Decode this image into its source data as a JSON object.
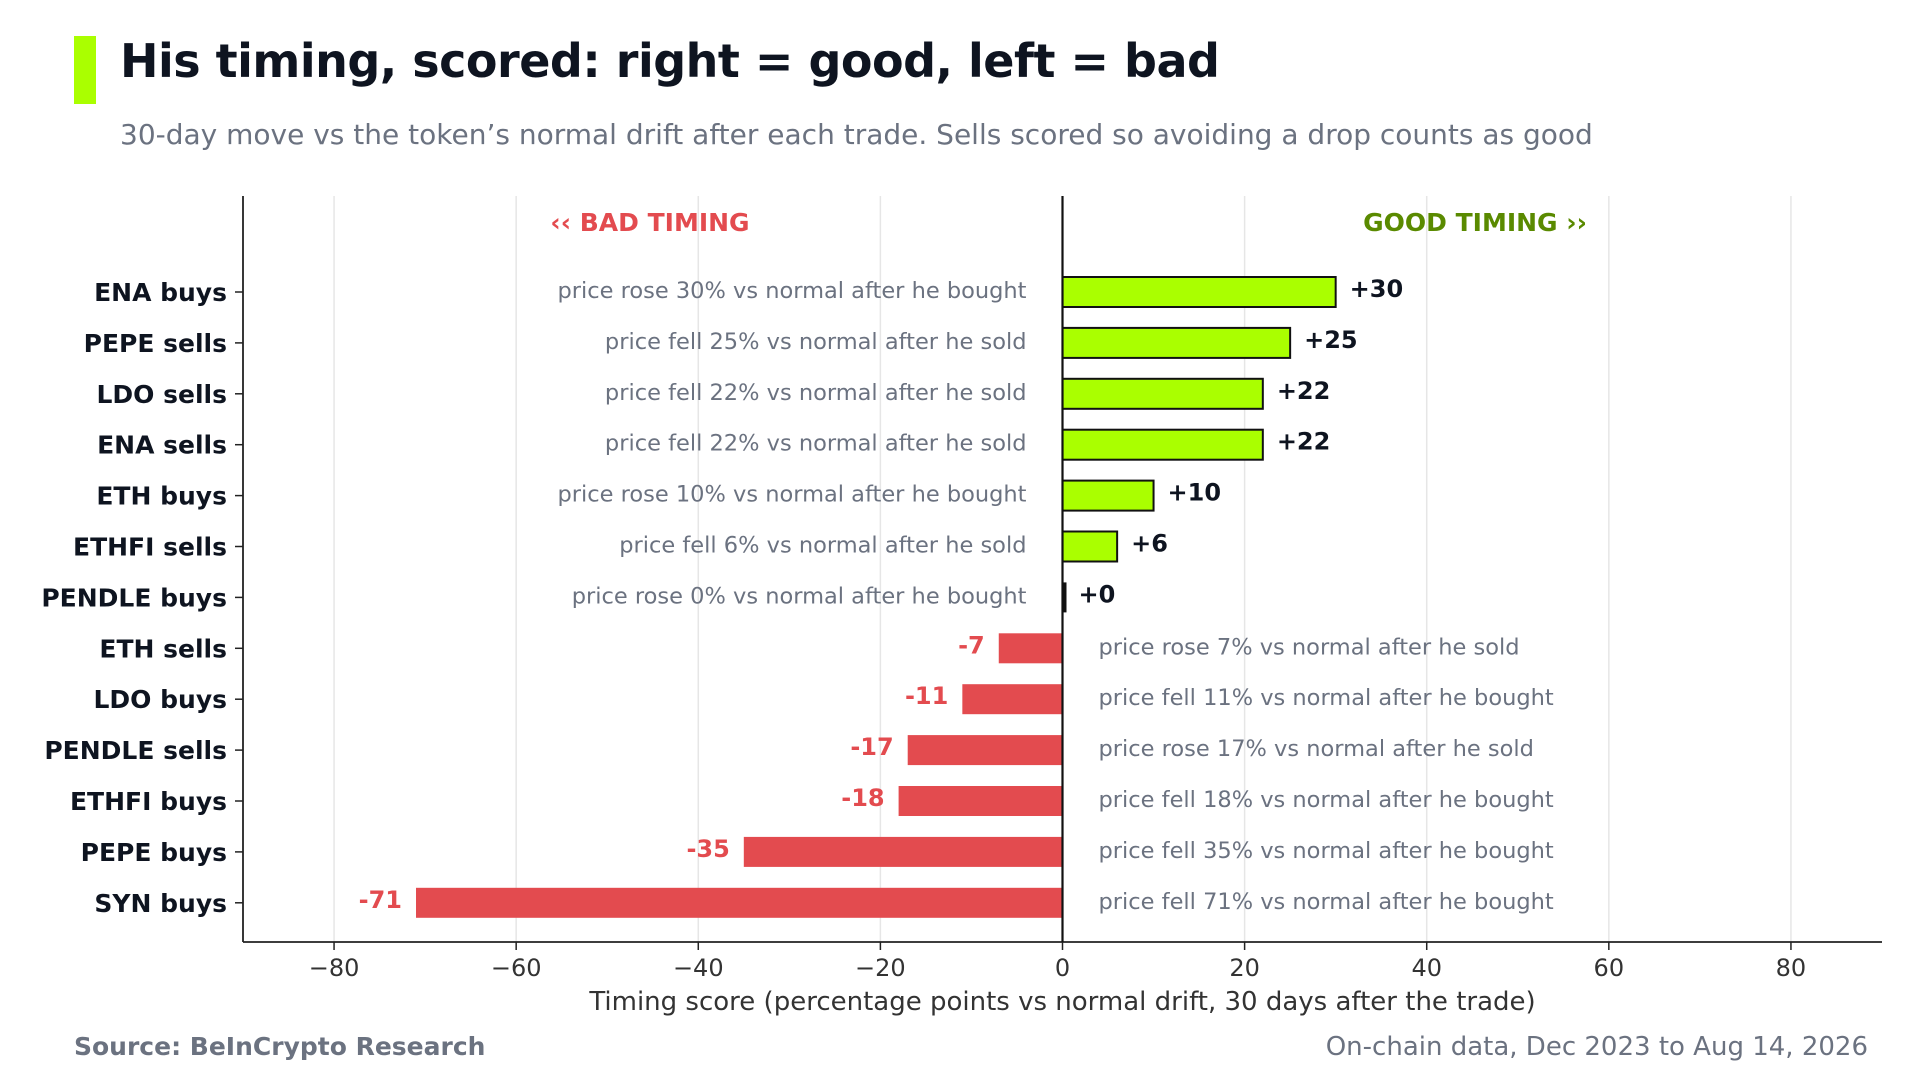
{
  "header": {
    "title": "His timing, scored: right = good, left = bad",
    "subtitle": "30-day move vs the token’s normal drift after each trade. Sells scored so avoiding a drop counts as good"
  },
  "footer": {
    "source": "Source: BeInCrypto Research",
    "note": "On-chain data, Dec 2023 to Aug 14, 2026"
  },
  "colors": {
    "positive": "#aaff00",
    "negative": "#e34b4f",
    "positive_text": "#5a8a00",
    "negative_text": "#e34b4f",
    "accent": "#aaff00"
  },
  "chart_data": {
    "type": "bar",
    "orientation": "horizontal",
    "xlabel": "Timing score (percentage points vs normal drift, 30 days after the trade)",
    "xlim": [
      -90,
      90
    ],
    "xticks": [
      -80,
      -60,
      -40,
      -20,
      0,
      20,
      40,
      60,
      80
    ],
    "grid": true,
    "annotations": {
      "left": "‹‹ BAD TIMING",
      "right": "GOOD TIMING ››"
    },
    "categories": [
      "ENA buys",
      "PEPE sells",
      "LDO sells",
      "ENA sells",
      "ETH buys",
      "ETHFI sells",
      "PENDLE buys",
      "ETH sells",
      "LDO buys",
      "PENDLE sells",
      "ETHFI buys",
      "PEPE buys",
      "SYN buys"
    ],
    "values": [
      30,
      25,
      22,
      22,
      10,
      6,
      0,
      -7,
      -11,
      -17,
      -18,
      -35,
      -71
    ],
    "value_labels": [
      "+30",
      "+25",
      "+22",
      "+22",
      "+10",
      "+6",
      "+0",
      "-7",
      "-11",
      "-17",
      "-18",
      "-35",
      "-71"
    ],
    "descriptions": [
      "price rose 30% vs normal after he bought",
      "price fell 25% vs normal after he sold",
      "price fell 22% vs normal after he sold",
      "price fell 22% vs normal after he sold",
      "price rose 10% vs normal after he bought",
      "price fell 6% vs normal after he sold",
      "price rose 0% vs normal after he bought",
      "price rose 7% vs normal after he sold",
      "price fell 11% vs normal after he bought",
      "price rose 17% vs normal after he sold",
      "price fell 18% vs normal after he bought",
      "price fell 35% vs normal after he bought",
      "price fell 71% vs normal after he bought"
    ]
  }
}
